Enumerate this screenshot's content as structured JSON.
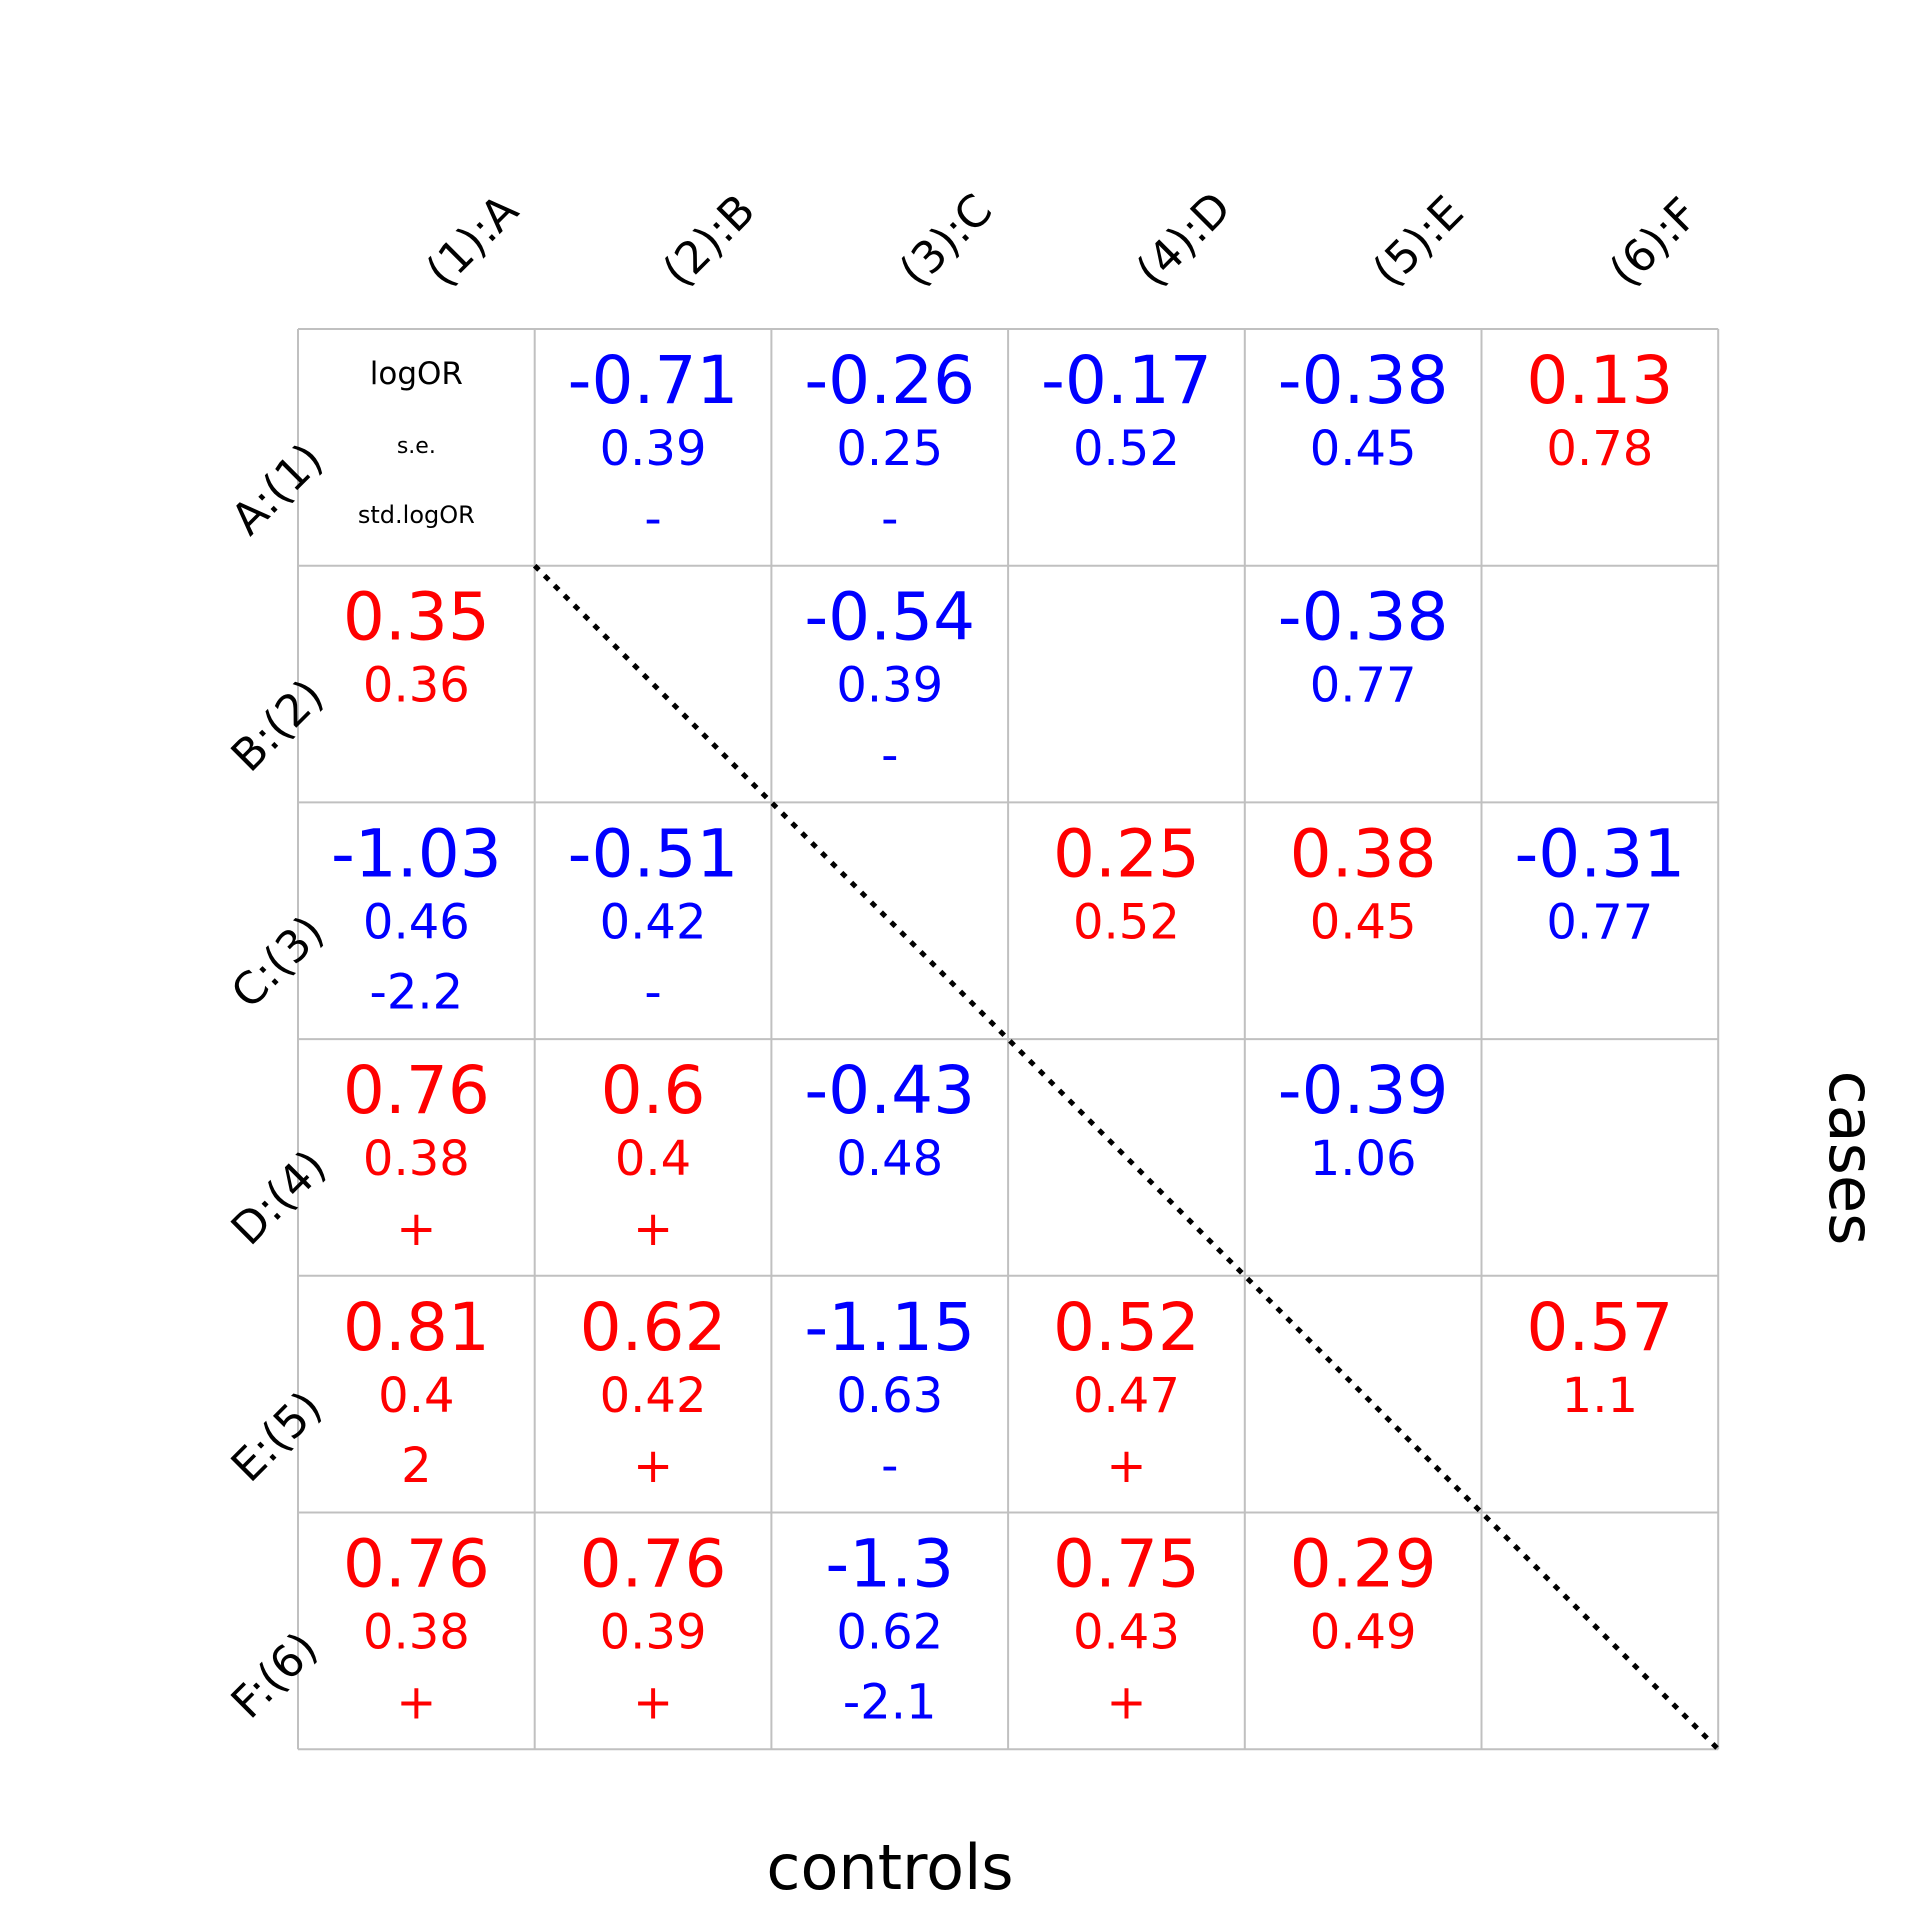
{
  "chart_data": {
    "type": "table",
    "xlabel": "controls",
    "ylabel": "cases",
    "column_labels": [
      "(1):A",
      "(2):B",
      "(3):C",
      "(4):D",
      "(5):E",
      "(6):F"
    ],
    "row_labels": [
      "A:(1)",
      "B:(2)",
      "C:(3)",
      "D:(4)",
      "E:(5)",
      "F:(6)"
    ],
    "legend": {
      "line1": "logOR",
      "line2": "s.e.",
      "line3": "std.logOR"
    },
    "diagonal_line": "dotted",
    "colors": {
      "positive": "#ff0000",
      "negative": "#0000ff",
      "grid": "#c0c0c0",
      "text": "#000000"
    },
    "cells": [
      [
        null,
        {
          "logOR": "-0.71",
          "se": "0.39",
          "std": "-",
          "sign": "negative"
        },
        {
          "logOR": "-0.26",
          "se": "0.25",
          "std": "-",
          "sign": "negative"
        },
        {
          "logOR": "-0.17",
          "se": "0.52",
          "std": "",
          "sign": "negative"
        },
        {
          "logOR": "-0.38",
          "se": "0.45",
          "std": "",
          "sign": "negative"
        },
        {
          "logOR": "0.13",
          "se": "0.78",
          "std": "",
          "sign": "positive"
        }
      ],
      [
        {
          "logOR": "0.35",
          "se": "0.36",
          "std": "",
          "sign": "positive"
        },
        null,
        {
          "logOR": "-0.54",
          "se": "0.39",
          "std": "-",
          "sign": "negative"
        },
        null,
        {
          "logOR": "-0.38",
          "se": "0.77",
          "std": "",
          "sign": "negative"
        },
        null
      ],
      [
        {
          "logOR": "-1.03",
          "se": "0.46",
          "std": "-2.2",
          "sign": "negative"
        },
        {
          "logOR": "-0.51",
          "se": "0.42",
          "std": "-",
          "sign": "negative"
        },
        null,
        {
          "logOR": "0.25",
          "se": "0.52",
          "std": "",
          "sign": "positive"
        },
        {
          "logOR": "0.38",
          "se": "0.45",
          "std": "",
          "sign": "positive"
        },
        {
          "logOR": "-0.31",
          "se": "0.77",
          "std": "",
          "sign": "negative"
        }
      ],
      [
        {
          "logOR": "0.76",
          "se": "0.38",
          "std": "+",
          "sign": "positive"
        },
        {
          "logOR": "0.6",
          "se": "0.4",
          "std": "+",
          "sign": "positive"
        },
        {
          "logOR": "-0.43",
          "se": "0.48",
          "std": "",
          "sign": "negative"
        },
        null,
        {
          "logOR": "-0.39",
          "se": "1.06",
          "std": "",
          "sign": "negative"
        },
        null
      ],
      [
        {
          "logOR": "0.81",
          "se": "0.4",
          "std": "2",
          "sign": "positive"
        },
        {
          "logOR": "0.62",
          "se": "0.42",
          "std": "+",
          "sign": "positive"
        },
        {
          "logOR": "-1.15",
          "se": "0.63",
          "std": "-",
          "sign": "negative"
        },
        {
          "logOR": "0.52",
          "se": "0.47",
          "std": "+",
          "sign": "positive"
        },
        null,
        {
          "logOR": "0.57",
          "se": "1.1",
          "std": "",
          "sign": "positive"
        }
      ],
      [
        {
          "logOR": "0.76",
          "se": "0.38",
          "std": "+",
          "sign": "positive"
        },
        {
          "logOR": "0.76",
          "se": "0.39",
          "std": "+",
          "sign": "positive"
        },
        {
          "logOR": "-1.3",
          "se": "0.62",
          "std": "-2.1",
          "sign": "negative"
        },
        {
          "logOR": "0.75",
          "se": "0.43",
          "std": "+",
          "sign": "positive"
        },
        {
          "logOR": "0.29",
          "se": "0.49",
          "std": "",
          "sign": "positive"
        },
        null
      ]
    ]
  }
}
